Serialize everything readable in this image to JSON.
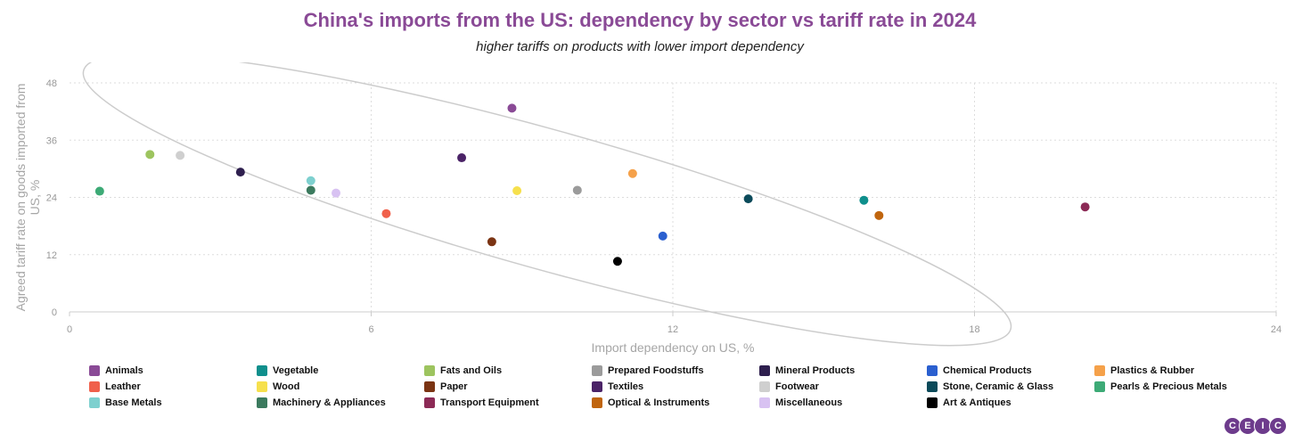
{
  "header": {
    "title": "China's imports from the US: dependency by sector vs tariff rate in 2024",
    "subtitle": "higher tariffs on products with lower import dependency"
  },
  "logo": {
    "letters": [
      "C",
      "E",
      "I",
      "C"
    ],
    "color": "#6d3b8c"
  },
  "chart_data": {
    "type": "scatter",
    "title": "China's imports from the US: dependency by sector vs tariff rate in 2024",
    "subtitle": "higher tariffs on products with lower import dependency",
    "xlabel": "Import dependency on US, %",
    "ylabel": "Agreed tariff rate on goods imported from US, %",
    "xlim": [
      0,
      24
    ],
    "ylim": [
      0,
      48
    ],
    "xticks": [
      0,
      6,
      12,
      18,
      24
    ],
    "yticks": [
      0,
      12,
      24,
      36,
      48
    ],
    "grid": "dotted",
    "legend_position": "bottom",
    "annotation": "ellipse outlining the downward trend",
    "series": [
      {
        "name": "Animals",
        "color": "#8a4a96",
        "x": 8.8,
        "y": 42.7
      },
      {
        "name": "Vegetable",
        "color": "#0f8f8c",
        "x": 15.8,
        "y": 23.4
      },
      {
        "name": "Fats and Oils",
        "color": "#9dc45f",
        "x": 1.6,
        "y": 33.0
      },
      {
        "name": "Prepared Foodstuffs",
        "color": "#9b9b9b",
        "x": 10.1,
        "y": 25.5
      },
      {
        "name": "Mineral Products",
        "color": "#2e1f4e",
        "x": 3.4,
        "y": 29.3
      },
      {
        "name": "Chemical Products",
        "color": "#2a5fcf",
        "x": 11.8,
        "y": 15.9
      },
      {
        "name": "Plastics & Rubber",
        "color": "#f5a14a",
        "x": 11.2,
        "y": 29.0
      },
      {
        "name": "Leather",
        "color": "#f0604b",
        "x": 6.3,
        "y": 20.6
      },
      {
        "name": "Wood",
        "color": "#f6e04d",
        "x": 8.9,
        "y": 25.4
      },
      {
        "name": "Paper",
        "color": "#7b3413",
        "x": 8.4,
        "y": 14.7
      },
      {
        "name": "Textiles",
        "color": "#4b2367",
        "x": 7.8,
        "y": 32.3
      },
      {
        "name": "Footwear",
        "color": "#cfcfcf",
        "x": 2.2,
        "y": 32.8
      },
      {
        "name": "Stone, Ceramic & Glass",
        "color": "#0b4a5a",
        "x": 13.5,
        "y": 23.7
      },
      {
        "name": "Pearls & Precious Metals",
        "color": "#3daa76",
        "x": 0.6,
        "y": 25.3
      },
      {
        "name": "Base Metals",
        "color": "#7ed0cf",
        "x": 4.8,
        "y": 27.5
      },
      {
        "name": "Machinery & Appliances",
        "color": "#3b7a5e",
        "x": 4.8,
        "y": 25.5
      },
      {
        "name": "Transport Equipment",
        "color": "#8c2a56",
        "x": 20.2,
        "y": 22.0
      },
      {
        "name": "Optical & Instruments",
        "color": "#c0650e",
        "x": 16.1,
        "y": 20.2
      },
      {
        "name": "Miscellaneous",
        "color": "#d8c2f2",
        "x": 5.3,
        "y": 24.9
      },
      {
        "name": "Art & Antiques",
        "color": "#000000",
        "x": 10.9,
        "y": 10.6
      }
    ]
  }
}
